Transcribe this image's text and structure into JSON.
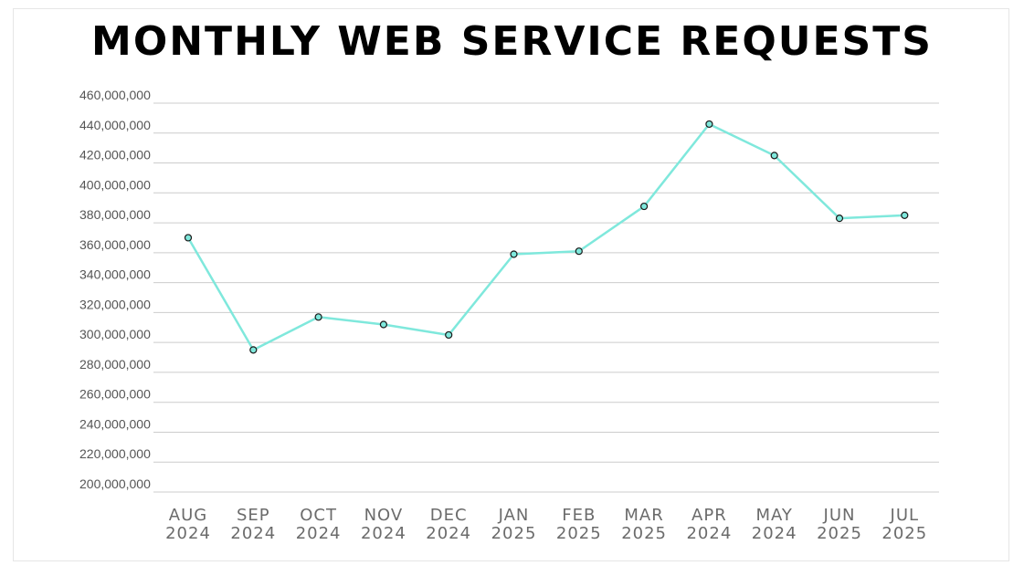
{
  "chart_data": {
    "type": "line",
    "title": "MONTHLY WEB SERVICE REQUESTS",
    "xlabel": "",
    "ylabel": "",
    "ylim": [
      200000000,
      460000000
    ],
    "yticks": [
      "460,000,000",
      "440,000,000",
      "420,000,000",
      "400,000,000",
      "380,000,000",
      "360,000,000",
      "340,000,000",
      "320,000,000",
      "300,000,000",
      "280,000,000",
      "260,000,000",
      "240,000,000",
      "220,000,000",
      "200,000,000"
    ],
    "categories": [
      [
        "AUG",
        "2024"
      ],
      [
        "SEP",
        "2024"
      ],
      [
        "OCT",
        "2024"
      ],
      [
        "NOV",
        "2024"
      ],
      [
        "DEC",
        "2024"
      ],
      [
        "JAN",
        "2025"
      ],
      [
        "FEB",
        "2025"
      ],
      [
        "MAR",
        "2025"
      ],
      [
        "APR",
        "2024"
      ],
      [
        "MAY",
        "2024"
      ],
      [
        "JUN",
        "2025"
      ],
      [
        "JUL",
        "2025"
      ]
    ],
    "series": [
      {
        "values": [
          370000000,
          295000000,
          317000000,
          312000000,
          305000000,
          359000000,
          361000000,
          391000000,
          446000000,
          425000000,
          383000000,
          385000000
        ]
      }
    ],
    "grid": true,
    "legend": "none",
    "line_color": "#7fe8dc",
    "marker_fill": "#7fe8dc",
    "marker_stroke": "#1a1a1a",
    "grid_color": "#cccccc"
  }
}
